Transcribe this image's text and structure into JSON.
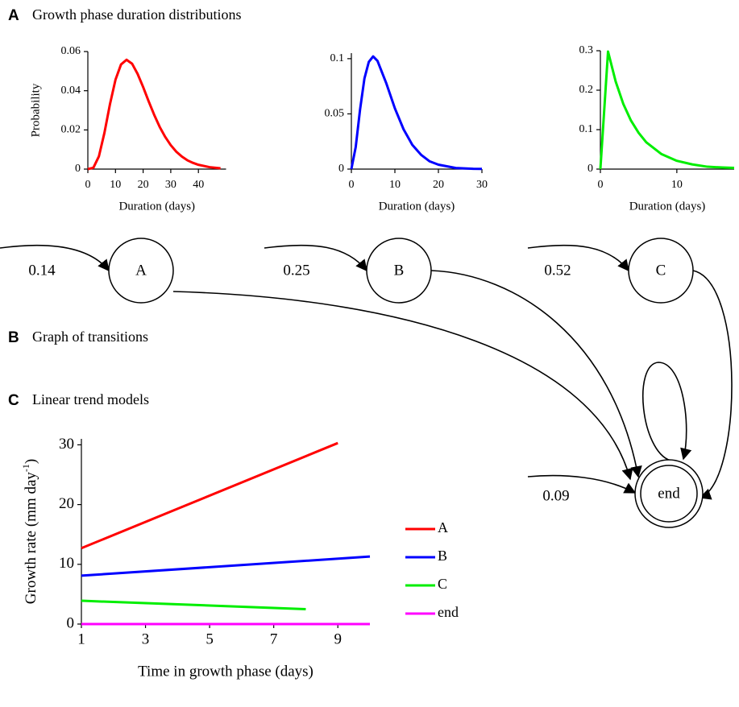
{
  "panels": [
    {
      "letter": "A",
      "title": "Growth phase duration distributions"
    },
    {
      "letter": "B",
      "title": "Graph of transitions"
    },
    {
      "letter": "C",
      "title": "Linear trend models"
    }
  ],
  "chart_data": [
    {
      "type": "line",
      "color": "#ff0000",
      "xlabel": "Duration (days)",
      "ylabel": "Probability",
      "x": [
        0,
        2,
        4,
        6,
        8,
        10,
        12,
        14,
        16,
        18,
        20,
        22,
        24,
        26,
        28,
        30,
        32,
        34,
        36,
        38,
        40,
        44,
        48
      ],
      "values": [
        0,
        0.0007,
        0.0065,
        0.0185,
        0.0331,
        0.0456,
        0.0534,
        0.0558,
        0.0538,
        0.0486,
        0.0419,
        0.0346,
        0.0277,
        0.0215,
        0.0164,
        0.0122,
        0.0089,
        0.0064,
        0.0045,
        0.0032,
        0.0022,
        0.001,
        0.0004
      ],
      "xlim": [
        0,
        50
      ],
      "ylim": [
        0,
        0.06
      ],
      "xticks": [
        0,
        10,
        20,
        30,
        40
      ],
      "yticks": [
        0,
        0.02,
        0.04,
        0.06
      ]
    },
    {
      "type": "line",
      "color": "#0000ff",
      "xlabel": "Duration (days)",
      "x": [
        0,
        1,
        2,
        3,
        4,
        5,
        6,
        8,
        10,
        12,
        14,
        16,
        18,
        20,
        24,
        28,
        30
      ],
      "values": [
        0,
        0.02,
        0.054,
        0.082,
        0.097,
        0.102,
        0.098,
        0.078,
        0.055,
        0.036,
        0.022,
        0.013,
        0.007,
        0.004,
        0.001,
        0.0003,
        0.0002
      ],
      "xlim": [
        0,
        30
      ],
      "ylim": [
        0,
        0.105
      ],
      "xticks": [
        0,
        10,
        20,
        30
      ],
      "yticks": [
        0,
        0.05,
        0.1
      ]
    },
    {
      "type": "line",
      "color": "#00ee00",
      "xlabel": "Duration (days)",
      "x": [
        0,
        1,
        2,
        3,
        4,
        5,
        6,
        8,
        10,
        12,
        14,
        16,
        17.5
      ],
      "values": [
        0,
        0.298,
        0.222,
        0.165,
        0.123,
        0.092,
        0.068,
        0.038,
        0.021,
        0.012,
        0.006,
        0.004,
        0.003
      ],
      "xlim": [
        0,
        17.5
      ],
      "ylim": [
        0,
        0.3
      ],
      "xticks": [
        0,
        10
      ],
      "yticks": [
        0,
        0.1,
        0.2,
        0.3
      ]
    },
    {
      "type": "line",
      "xlabel": "Time in growth phase (days)",
      "ylabel_parts": [
        "Growth rate (mm day",
        "-1",
        ")"
      ],
      "series": [
        {
          "name": "A",
          "color": "#ff0000",
          "x": [
            1,
            9
          ],
          "values": [
            12.7,
            30.3
          ]
        },
        {
          "name": "B",
          "color": "#0000ff",
          "x": [
            1,
            10
          ],
          "values": [
            8.1,
            11.3
          ]
        },
        {
          "name": "C",
          "color": "#00ee00",
          "x": [
            1,
            8
          ],
          "values": [
            3.9,
            2.5
          ]
        },
        {
          "name": "end",
          "color": "#ff00ff",
          "x": [
            1,
            10
          ],
          "values": [
            0,
            0
          ]
        }
      ],
      "xlim": [
        1,
        10
      ],
      "ylim": [
        0,
        31
      ],
      "xticks": [
        1,
        3,
        5,
        7,
        9
      ],
      "yticks": [
        0,
        10,
        20,
        30
      ]
    }
  ],
  "graph": {
    "nodes": [
      {
        "label": "A",
        "entry": 0.14
      },
      {
        "label": "B",
        "entry": 0.25
      },
      {
        "label": "C",
        "entry": 0.52
      },
      {
        "label": "end",
        "entry": 0.09
      }
    ]
  }
}
